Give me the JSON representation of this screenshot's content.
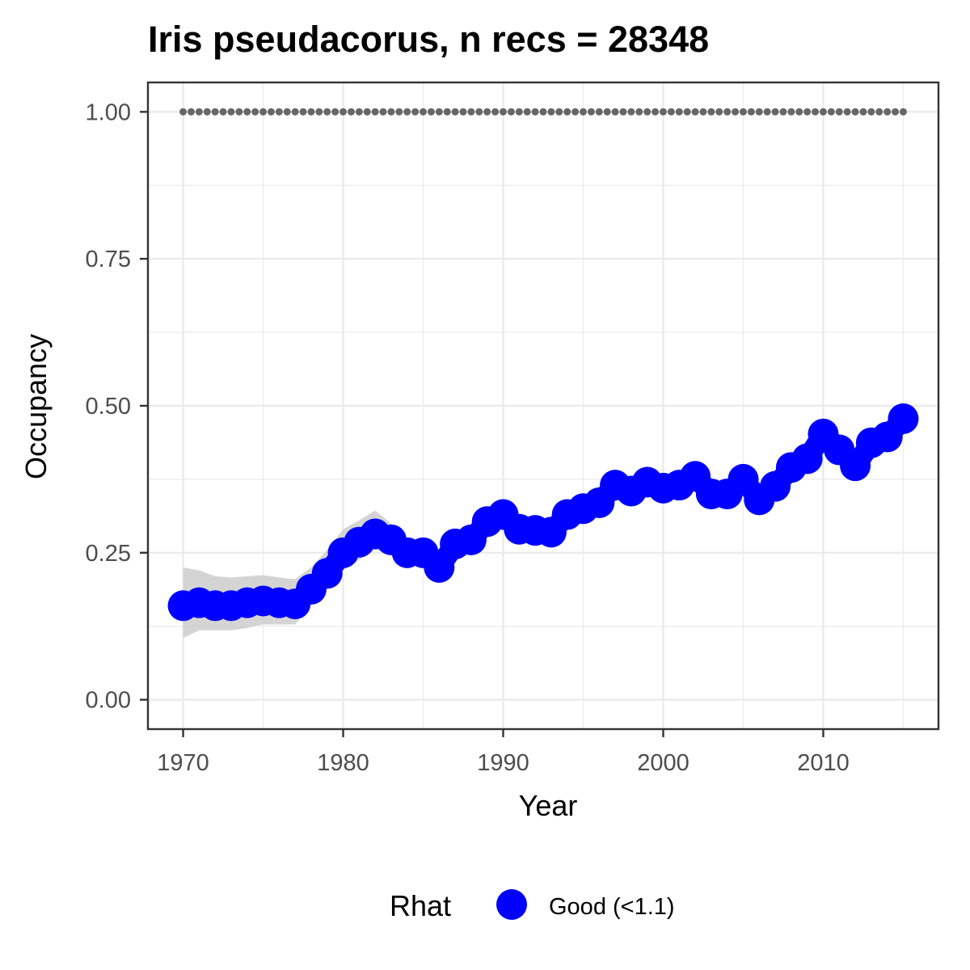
{
  "chart_data": {
    "type": "line",
    "title": "Iris pseudacorus, n recs = 28348",
    "xlabel": "Year",
    "ylabel": "Occupancy",
    "xlim": [
      1967.8,
      2017.2
    ],
    "ylim": [
      -0.05,
      1.05
    ],
    "x_ticks": [
      1970,
      1980,
      1990,
      2000,
      2010
    ],
    "x_tick_labels": [
      "1970",
      "1980",
      "1990",
      "2000",
      "2010"
    ],
    "y_ticks": [
      0,
      0.25,
      0.5,
      0.75,
      1.0
    ],
    "y_tick_labels": [
      "0.00",
      "0.25",
      "0.50",
      "0.75",
      "1.00"
    ],
    "grid": true,
    "legend": {
      "title": "Rhat",
      "placement": "bottom",
      "entries": [
        {
          "label": "Good (<1.1)",
          "color": "#0000ff"
        }
      ]
    },
    "colors": {
      "points": "#0000ff",
      "band": "#cccccc",
      "reference": "#666666",
      "grid": "#ebebeb",
      "frame": "#333333"
    },
    "reference_line": {
      "y": 1.0,
      "style": "dotted"
    },
    "series": [
      {
        "x": [
          1970,
          1971,
          1972,
          1973,
          1974,
          1975,
          1976,
          1977,
          1978,
          1979,
          1980,
          1981,
          1982,
          1983,
          1984,
          1985,
          1986,
          1987,
          1988,
          1989,
          1990,
          1991,
          1992,
          1993,
          1994,
          1995,
          1996,
          1997,
          1998,
          1999,
          2000,
          2001,
          2002,
          2003,
          2004,
          2005,
          2006,
          2007,
          2008,
          2009,
          2010,
          2011,
          2012,
          2013,
          2014,
          2015
        ],
        "y": [
          0.16,
          0.165,
          0.16,
          0.16,
          0.165,
          0.168,
          0.165,
          0.163,
          0.188,
          0.215,
          0.25,
          0.268,
          0.282,
          0.272,
          0.25,
          0.25,
          0.225,
          0.265,
          0.272,
          0.303,
          0.315,
          0.29,
          0.288,
          0.285,
          0.315,
          0.325,
          0.335,
          0.365,
          0.355,
          0.37,
          0.36,
          0.365,
          0.38,
          0.35,
          0.35,
          0.375,
          0.34,
          0.363,
          0.395,
          0.41,
          0.452,
          0.425,
          0.398,
          0.437,
          0.447,
          0.478
        ],
        "lower": [
          0.105,
          0.118,
          0.118,
          0.118,
          0.122,
          0.128,
          0.128,
          0.128,
          0.16,
          0.188,
          0.22,
          0.238,
          0.255,
          0.248,
          0.228,
          0.228,
          0.205,
          0.245,
          0.252,
          0.282,
          0.295,
          0.272,
          0.27,
          0.268,
          0.298,
          0.308,
          0.318,
          0.348,
          0.34,
          0.355,
          0.345,
          0.35,
          0.364,
          0.335,
          0.335,
          0.36,
          0.326,
          0.348,
          0.38,
          0.395,
          0.436,
          0.41,
          0.383,
          0.422,
          0.432,
          0.463
        ],
        "upper": [
          0.225,
          0.22,
          0.21,
          0.208,
          0.21,
          0.212,
          0.208,
          0.205,
          0.225,
          0.255,
          0.29,
          0.305,
          0.322,
          0.3,
          0.275,
          0.272,
          0.248,
          0.288,
          0.295,
          0.325,
          0.34,
          0.31,
          0.305,
          0.305,
          0.332,
          0.345,
          0.352,
          0.383,
          0.37,
          0.385,
          0.378,
          0.383,
          0.398,
          0.366,
          0.366,
          0.392,
          0.356,
          0.38,
          0.412,
          0.427,
          0.47,
          0.44,
          0.414,
          0.453,
          0.463,
          0.495
        ]
      }
    ],
    "reference_x": [
      1970,
      1971,
      1972,
      1973,
      1974,
      1975,
      1976,
      1977,
      1978,
      1979,
      1980,
      1981,
      1982,
      1983,
      1984,
      1985,
      1986,
      1987,
      1988,
      1989,
      1990,
      1991,
      1992,
      1993,
      1994,
      1995,
      1996,
      1997,
      1998,
      1999,
      2000,
      2001,
      2002,
      2003,
      2004,
      2005,
      2006,
      2007,
      2008,
      2009,
      2010,
      2011,
      2012,
      2013,
      2014,
      2015
    ]
  }
}
